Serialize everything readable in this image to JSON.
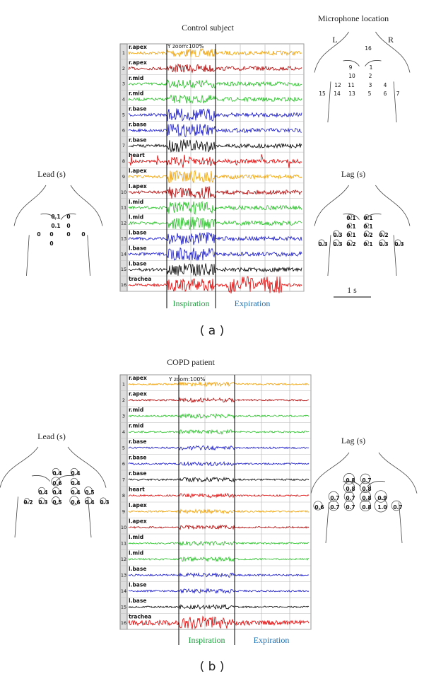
{
  "panels": [
    {
      "title": "Control subject",
      "caption": "( a )",
      "zoom_label": "Y zoom:100%",
      "channels": [
        {
          "number": "1",
          "label": "r.apex"
        },
        {
          "number": "2",
          "label": "r.apex"
        },
        {
          "number": "3",
          "label": "r.mid"
        },
        {
          "number": "4",
          "label": "r.mid"
        },
        {
          "number": "5",
          "label": "r.base"
        },
        {
          "number": "6",
          "label": "r.base"
        },
        {
          "number": "7",
          "label": "r.base"
        },
        {
          "number": "8",
          "label": "heart"
        },
        {
          "number": "9",
          "label": "l.apex"
        },
        {
          "number": "10",
          "label": "l.apex"
        },
        {
          "number": "11",
          "label": "l.mid"
        },
        {
          "number": "12",
          "label": "l.mid"
        },
        {
          "number": "13",
          "label": "l.base"
        },
        {
          "number": "14",
          "label": "l.base"
        },
        {
          "number": "15",
          "label": "l.base"
        },
        {
          "number": "16",
          "label": "trachea"
        }
      ],
      "phases": {
        "inspiration": "Inspiration",
        "expiration": "Expiration"
      },
      "scale_label": "1 s",
      "microphone": {
        "title": "Microphone location",
        "left": "L",
        "right": "R",
        "numbers": [
          "16",
          "9",
          "1",
          "10",
          "2",
          "12",
          "11",
          "3",
          "4",
          "15",
          "14",
          "13",
          "5",
          "6",
          "7"
        ]
      },
      "lead": {
        "title": "Lead (s)",
        "values": [
          "0.1",
          "0",
          "0.1",
          "0",
          "0",
          "0",
          "0",
          "0",
          "0"
        ]
      },
      "lag": {
        "title": "Lag (s)",
        "values": [
          "0.1",
          "0.1",
          "0.1",
          "0.1",
          "0.3",
          "0.1",
          "0.2",
          "0.2",
          "0.3",
          "0.3",
          "0.2",
          "0.1",
          "0.3",
          "0.3"
        ]
      }
    },
    {
      "title": "COPD patient",
      "caption": "( b )",
      "zoom_label": "Y zoom:100%",
      "channels": [
        {
          "number": "1",
          "label": "r.apex"
        },
        {
          "number": "2",
          "label": "r.apex"
        },
        {
          "number": "3",
          "label": "r.mid"
        },
        {
          "number": "4",
          "label": "r.mid"
        },
        {
          "number": "5",
          "label": "r.base"
        },
        {
          "number": "6",
          "label": "r.base"
        },
        {
          "number": "7",
          "label": "r.base"
        },
        {
          "number": "8",
          "label": "heart"
        },
        {
          "number": "9",
          "label": "l.apex"
        },
        {
          "number": "10",
          "label": "l.apex"
        },
        {
          "number": "11",
          "label": "l.mid"
        },
        {
          "number": "12",
          "label": "l.mid"
        },
        {
          "number": "13",
          "label": "l.base"
        },
        {
          "number": "14",
          "label": "l.base"
        },
        {
          "number": "15",
          "label": "l.base"
        },
        {
          "number": "16",
          "label": "trachea"
        }
      ],
      "phases": {
        "inspiration": "Inspiration",
        "expiration": "Expiration"
      },
      "lead": {
        "title": "Lead (s)",
        "values": [
          "0.4",
          "0.4",
          "0.6",
          "0.4",
          "0.4",
          "0.4",
          "0.4",
          "0.5",
          "0.2",
          "0.3",
          "0.5",
          "0.6",
          "0.4",
          "0.3"
        ]
      },
      "lag": {
        "title": "Lag (s)",
        "values": [
          "0.8",
          "0.7",
          "0.8",
          "0.8",
          "0.7",
          "0.7",
          "0.8",
          "0.9",
          "0.6",
          "0.7",
          "0.7",
          "0.8",
          "1.0",
          "0.7"
        ]
      }
    }
  ]
}
